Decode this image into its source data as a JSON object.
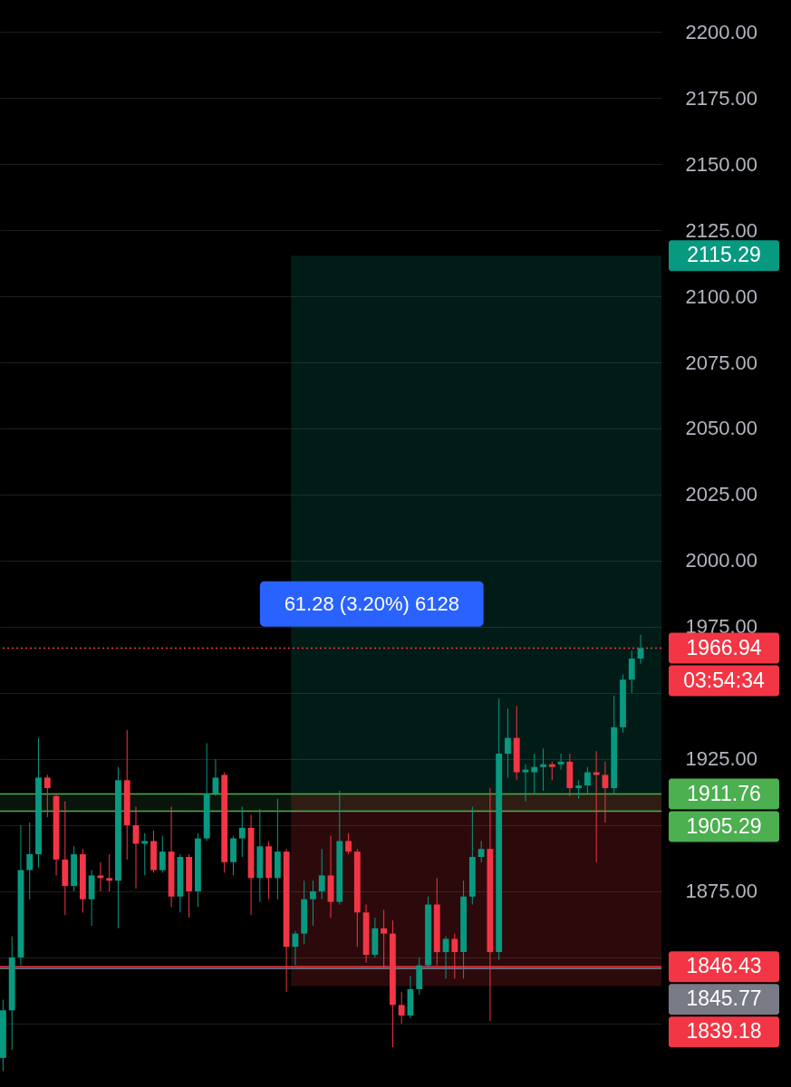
{
  "chart_data": {
    "type": "candlestick",
    "categories": [
      null,
      null,
      null,
      null,
      null,
      null,
      null,
      null,
      null,
      null,
      null,
      null,
      null,
      null,
      null,
      null,
      null,
      null,
      null,
      null,
      null,
      null,
      null,
      null,
      null,
      null,
      null,
      null,
      null,
      null,
      null,
      null,
      null,
      null,
      null,
      null,
      null,
      null,
      null,
      null,
      null,
      null,
      null,
      null,
      null,
      null,
      null,
      null,
      null,
      null,
      null,
      null,
      null,
      null,
      null,
      null,
      null,
      null,
      null,
      null,
      null,
      null,
      null,
      null,
      null,
      null,
      null,
      null,
      null,
      null,
      null,
      null,
      null
    ],
    "ohlc": [
      [
        1812,
        1834,
        1807,
        1830
      ],
      [
        1830,
        1858,
        1815,
        1850
      ],
      [
        1850,
        1900,
        1847,
        1883
      ],
      [
        1883,
        1901,
        1872,
        1889
      ],
      [
        1889,
        1933,
        1884,
        1918
      ],
      [
        1918,
        1919,
        1903,
        1914
      ],
      [
        1911,
        1912,
        1881,
        1887
      ],
      [
        1887,
        1909,
        1866,
        1877
      ],
      [
        1877,
        1892,
        1875,
        1889
      ],
      [
        1889,
        1891,
        1867,
        1872
      ],
      [
        1872,
        1883,
        1862,
        1881
      ],
      [
        1881,
        1886,
        1875,
        1880
      ],
      [
        1880,
        1889,
        1875,
        1879
      ],
      [
        1879,
        1922,
        1861,
        1917
      ],
      [
        1917,
        1936,
        1887,
        1900
      ],
      [
        1900,
        1907,
        1876,
        1893
      ],
      [
        1893,
        1897,
        1881,
        1894
      ],
      [
        1894,
        1898,
        1882,
        1883
      ],
      [
        1883,
        1896,
        1882,
        1890
      ],
      [
        1890,
        1907,
        1869,
        1873
      ],
      [
        1873,
        1889,
        1867,
        1888
      ],
      [
        1888,
        1889,
        1865,
        1875
      ],
      [
        1875,
        1897,
        1869,
        1895
      ],
      [
        1895,
        1931,
        1894,
        1912
      ],
      [
        1912,
        1925,
        1911,
        1918
      ],
      [
        1919,
        1920,
        1882,
        1886
      ],
      [
        1886,
        1896,
        1881,
        1895
      ],
      [
        1895,
        1907,
        1888,
        1899
      ],
      [
        1899,
        1904,
        1866,
        1880
      ],
      [
        1880,
        1906,
        1871,
        1892
      ],
      [
        1892,
        1894,
        1872,
        1880
      ],
      [
        1880,
        1910,
        1872,
        1890
      ],
      [
        1890,
        1891,
        1837,
        1854
      ],
      [
        1854,
        1860,
        1847,
        1859
      ],
      [
        1859,
        1879,
        1855,
        1872
      ],
      [
        1872,
        1879,
        1862,
        1875
      ],
      [
        1875,
        1891,
        1872,
        1881
      ],
      [
        1881,
        1896,
        1865,
        1871
      ],
      [
        1871,
        1913,
        1870,
        1894
      ],
      [
        1894,
        1897,
        1889,
        1890
      ],
      [
        1890,
        1891,
        1854,
        1867
      ],
      [
        1867,
        1870,
        1848,
        1851
      ],
      [
        1851,
        1865,
        1850,
        1861
      ],
      [
        1861,
        1868,
        1846,
        1859
      ],
      [
        1859,
        1864,
        1816,
        1832
      ],
      [
        1832,
        1837,
        1825,
        1828
      ],
      [
        1828,
        1843,
        1827,
        1838
      ],
      [
        1838,
        1850,
        1836,
        1847
      ],
      [
        1847,
        1873,
        1846,
        1870
      ],
      [
        1870,
        1880,
        1847,
        1852
      ],
      [
        1852,
        1858,
        1842,
        1857
      ],
      [
        1857,
        1859,
        1842,
        1852
      ],
      [
        1852,
        1879,
        1842,
        1873
      ],
      [
        1873,
        1907,
        1870,
        1888
      ],
      [
        1888,
        1894,
        1886,
        1891
      ],
      [
        1891,
        1914,
        1826,
        1852
      ],
      [
        1852,
        1948,
        1849,
        1927
      ],
      [
        1927,
        1944,
        1918,
        1933
      ],
      [
        1933,
        1945,
        1917,
        1920
      ],
      [
        1920,
        1923,
        1909,
        1921
      ],
      [
        1920,
        1927,
        1912,
        1922
      ],
      [
        1922,
        1929,
        1913,
        1923
      ],
      [
        1923,
        1924,
        1917,
        1922
      ],
      [
        1923,
        1927,
        1921,
        1924
      ],
      [
        1924,
        1927,
        1911,
        1914
      ],
      [
        1914,
        1917,
        1910,
        1915
      ],
      [
        1915,
        1922,
        1912,
        1920
      ],
      [
        1920,
        1928,
        1886,
        1919
      ],
      [
        1919,
        1924,
        1901,
        1914
      ],
      [
        1914,
        1949,
        1912,
        1937
      ],
      [
        1937,
        1957,
        1935,
        1955
      ],
      [
        1955,
        1966,
        1950,
        1963
      ],
      [
        1963,
        1972,
        1961,
        1966.94
      ]
    ],
    "colors": [
      "#089981",
      "#089981",
      "#089981",
      "#089981",
      "#089981",
      "#f23645",
      "#f23645",
      "#f23645",
      "#089981",
      "#f23645",
      "#089981",
      "#f23645",
      "#f23645",
      "#089981",
      "#f23645",
      "#f23645",
      "#089981",
      "#f23645",
      "#089981",
      "#f23645",
      "#089981",
      "#f23645",
      "#089981",
      "#089981",
      "#089981",
      "#f23645",
      "#089981",
      "#089981",
      "#f23645",
      "#089981",
      "#f23645",
      "#089981",
      "#f23645",
      "#089981",
      "#089981",
      "#089981",
      "#089981",
      "#f23645",
      "#089981",
      "#f23645",
      "#f23645",
      "#f23645",
      "#089981",
      "#f23645",
      "#f23645",
      "#f23645",
      "#089981",
      "#089981",
      "#089981",
      "#f23645",
      "#089981",
      "#f23645",
      "#089981",
      "#089981",
      "#089981",
      "#f23645",
      "#089981",
      "#089981",
      "#f23645",
      "#089981",
      "#089981",
      "#089981",
      "#f23645",
      "#089981",
      "#f23645",
      "#089981",
      "#089981",
      "#f23645",
      "#f23645",
      "#089981",
      "#089981",
      "#089981",
      "#089981"
    ],
    "ylim": [
      1801,
      2212
    ],
    "yticks": [
      {
        "value": 1825,
        "label": null
      },
      {
        "value": 1850,
        "label": null
      },
      {
        "value": 1875,
        "label": "1875.00"
      },
      {
        "value": 1900,
        "label": null
      },
      {
        "value": 1925,
        "label": "1925.00"
      },
      {
        "value": 1950,
        "label": null
      },
      {
        "value": 1975,
        "label": "1975.00"
      },
      {
        "value": 2000,
        "label": "2000.00"
      },
      {
        "value": 2025,
        "label": "2025.00"
      },
      {
        "value": 2050,
        "label": "2050.00"
      },
      {
        "value": 2075,
        "label": "2075.00"
      },
      {
        "value": 2100,
        "label": "2100.00"
      },
      {
        "value": 2125,
        "label": "2125.00"
      },
      {
        "value": 2150,
        "label": "2150.00"
      },
      {
        "value": 2175,
        "label": "2175.00"
      },
      {
        "value": 2200,
        "label": "2200.00"
      }
    ],
    "grid": "y",
    "tick_labels": "y",
    "bands": [
      {
        "axis": "y",
        "from": 1911.76,
        "to": 2115.29,
        "label": "2115.29",
        "color": "#089981"
      },
      {
        "axis": "y",
        "from": 1911.76,
        "to": 1839.18,
        "label": "1839.18",
        "color": "#f23645"
      },
      {
        "axis": "y",
        "from": 1905.29,
        "to": 1911.76,
        "color": "#4caf50"
      }
    ],
    "ref_lines": [
      {
        "axis": "y",
        "value": 1966.94,
        "label": "1966.94",
        "color": "#f23645",
        "line_style": "dotted"
      },
      {
        "axis": "y",
        "value": 1911.76,
        "label": "1911.76",
        "color": "#4caf50"
      },
      {
        "axis": "y",
        "value": 1905.29,
        "label": "1905.29",
        "color": "#4caf50"
      },
      {
        "axis": "y",
        "value": 1845.77,
        "label": "1845.77",
        "color": "#787b86"
      },
      {
        "axis": "y",
        "value": 1846.43,
        "label": "1846.43",
        "color": "#f23645"
      }
    ],
    "annotations": [
      "61.28 (3.20%) 6128",
      "03:54:34"
    ]
  }
}
